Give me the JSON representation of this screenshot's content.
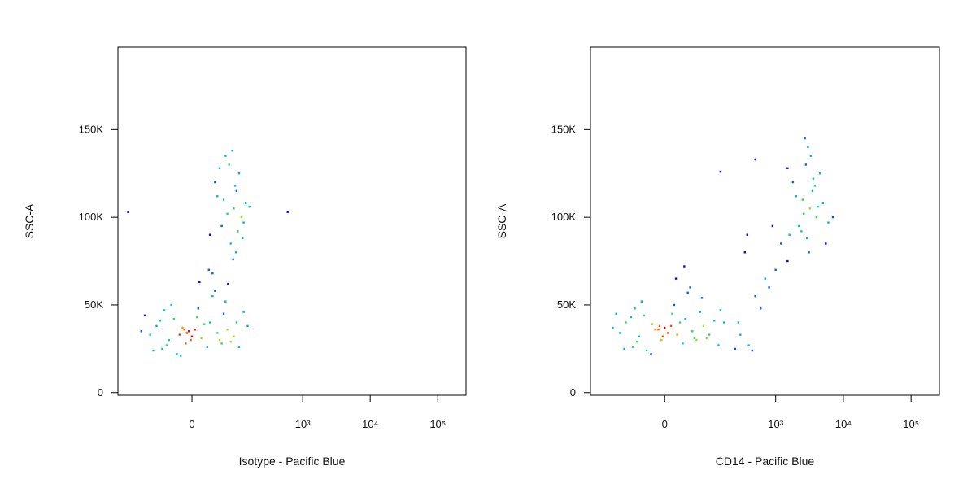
{
  "chart_data": [
    {
      "type": "scatter",
      "xscale": "biexponential",
      "x_label": "Isotype - Pacific Blue",
      "y_label": "SSC-A",
      "xlim": [
        -285,
        262000
      ],
      "ylim": [
        -1500,
        197000
      ],
      "xticks": [
        0,
        {
          "value": 1000,
          "label": "10³"
        },
        {
          "value": 10000,
          "label": "10⁴"
        },
        {
          "value": 100000,
          "label": "10⁵"
        }
      ],
      "yticks": [
        0,
        {
          "value": 50000,
          "label": "50K"
        },
        {
          "value": 100000,
          "label": "100K"
        },
        {
          "value": 150000,
          "label": "150K"
        }
      ],
      "x": [
        -20,
        5,
        -40,
        30,
        -10,
        60,
        -70,
        15,
        -5,
        45,
        -30,
        80,
        -90,
        10,
        25,
        -15,
        100,
        -55,
        35,
        0,
        -25,
        70,
        -110,
        50,
        -45,
        20,
        -8,
        130,
        -80,
        40,
        -35,
        90,
        -60,
        12,
        -18,
        55,
        -125,
        150,
        8,
        -2,
        65,
        -50,
        28,
        -12,
        110,
        60,
        90,
        40,
        120,
        75,
        100,
        55,
        140,
        85,
        30,
        110,
        70,
        95,
        130,
        45,
        80,
        160,
        65,
        105,
        50,
        88,
        125,
        35,
        72,
        98,
        -200,
        600
      ],
      "values": [
        33000,
        36000,
        30000,
        40000,
        28000,
        45000,
        38000,
        31000,
        35000,
        34000,
        42000,
        29000,
        33000,
        48000,
        26000,
        37000,
        40000,
        25000,
        55000,
        32000,
        22000,
        36000,
        44000,
        30000,
        27000,
        39000,
        34000,
        46000,
        24000,
        58000,
        50000,
        32000,
        41000,
        63000,
        21000,
        28000,
        35000,
        38000,
        43000,
        30000,
        52000,
        47000,
        70000,
        36000,
        26000,
        110000,
        105000,
        120000,
        100000,
        130000,
        115000,
        95000,
        108000,
        138000,
        90000,
        125000,
        102000,
        118000,
        97000,
        112000,
        85000,
        106000,
        135000,
        92000,
        128000,
        76000,
        88000,
        68000,
        62000,
        80000,
        103000,
        103000
      ]
    },
    {
      "type": "scatter",
      "xscale": "biexponential",
      "x_label": "CD14 - Pacific Blue",
      "y_label": "SSC-A",
      "xlim": [
        -285,
        262000
      ],
      "ylim": [
        -1500,
        197000
      ],
      "xticks": [
        0,
        {
          "value": 1000,
          "label": "10³"
        },
        {
          "value": 10000,
          "label": "10⁴"
        },
        {
          "value": 100000,
          "label": "10⁵"
        }
      ],
      "yticks": [
        0,
        {
          "value": 50000,
          "label": "50K"
        },
        {
          "value": 100000,
          "label": "100K"
        },
        {
          "value": 150000,
          "label": "150K"
        }
      ],
      "x": [
        -15,
        10,
        -45,
        35,
        -5,
        70,
        -80,
        20,
        0,
        50,
        -35,
        90,
        -100,
        15,
        30,
        -20,
        120,
        -60,
        40,
        5,
        -30,
        80,
        -115,
        55,
        -50,
        25,
        -10,
        150,
        -85,
        45,
        -40,
        100,
        -65,
        18,
        -22,
        60,
        -130,
        170,
        12,
        -3,
        75,
        -55,
        33,
        -8,
        140,
        250,
        400,
        300,
        600,
        800,
        350,
        500,
        1000,
        1200,
        450,
        700,
        900,
        280,
        380,
        1500,
        150,
        500,
        2500,
        3200,
        1800,
        4000,
        2800,
        3500,
        2200,
        5000,
        3000,
        1600,
        4500,
        2600,
        3800,
        6000,
        2000,
        3300,
        2900,
        4200,
        1500,
        3600,
        2400,
        7000,
        2700,
        3100,
        5500
      ],
      "values": [
        36000,
        38000,
        32000,
        42000,
        30000,
        46000,
        40000,
        33000,
        37000,
        35000,
        44000,
        31000,
        34000,
        50000,
        28000,
        39000,
        41000,
        26000,
        57000,
        34000,
        24000,
        38000,
        45000,
        31000,
        29000,
        40000,
        36000,
        47000,
        25000,
        60000,
        52000,
        33000,
        43000,
        65000,
        22000,
        30000,
        37000,
        40000,
        45000,
        32000,
        54000,
        48000,
        72000,
        38000,
        27000,
        25000,
        27000,
        33000,
        48000,
        60000,
        80000,
        55000,
        70000,
        85000,
        24000,
        65000,
        95000,
        40000,
        90000,
        75000,
        126000,
        133000,
        110000,
        105000,
        120000,
        100000,
        130000,
        115000,
        95000,
        108000,
        140000,
        90000,
        125000,
        102000,
        118000,
        97000,
        112000,
        135000,
        88000,
        106000,
        128000,
        122000,
        92000,
        100000,
        145000,
        80000,
        85000
      ]
    }
  ]
}
